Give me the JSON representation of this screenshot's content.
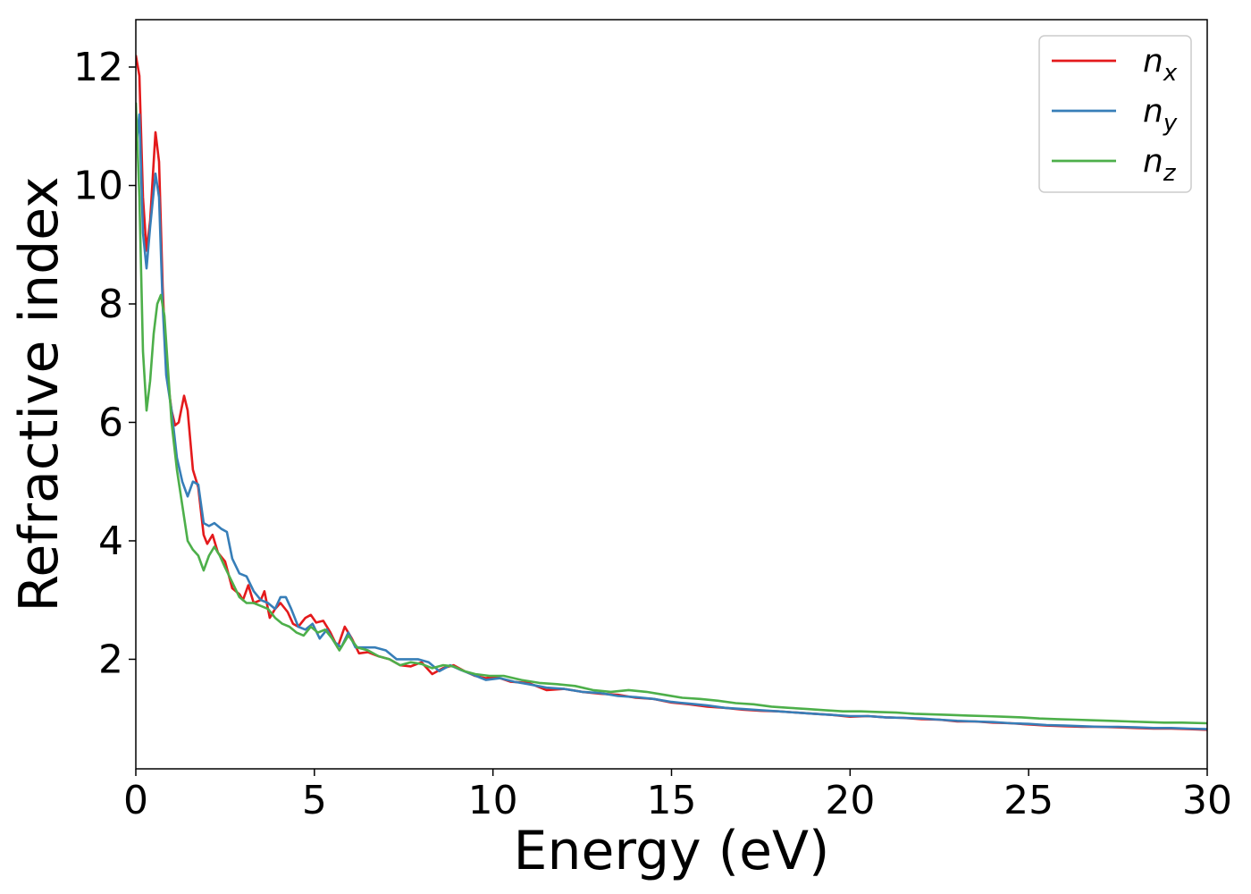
{
  "chart_data": {
    "type": "line",
    "title": "",
    "xlabel": "Energy (eV)",
    "ylabel": "Refractive index",
    "xlim": [
      0,
      30
    ],
    "ylim": [
      0.15,
      12.8
    ],
    "xticks": [
      0,
      5,
      10,
      15,
      20,
      25,
      30
    ],
    "yticks": [
      2,
      4,
      6,
      8,
      10,
      12
    ],
    "grid": false,
    "legend": {
      "position": "top-right"
    },
    "series": [
      {
        "name": "n_x",
        "label_main": "n",
        "label_sub": "x",
        "color": "#e41a1c",
        "points": [
          [
            0,
            12.2
          ],
          [
            0.1,
            11.85
          ],
          [
            0.2,
            9.8
          ],
          [
            0.3,
            8.9
          ],
          [
            0.4,
            9.4
          ],
          [
            0.55,
            10.9
          ],
          [
            0.65,
            10.4
          ],
          [
            0.75,
            8.3
          ],
          [
            0.85,
            6.9
          ],
          [
            1.0,
            6.2
          ],
          [
            1.1,
            5.95
          ],
          [
            1.2,
            6.0
          ],
          [
            1.35,
            6.45
          ],
          [
            1.45,
            6.2
          ],
          [
            1.6,
            5.2
          ],
          [
            1.75,
            4.9
          ],
          [
            1.9,
            4.1
          ],
          [
            2.0,
            3.95
          ],
          [
            2.15,
            4.1
          ],
          [
            2.3,
            3.8
          ],
          [
            2.5,
            3.65
          ],
          [
            2.7,
            3.2
          ],
          [
            2.9,
            3.1
          ],
          [
            3.0,
            3.0
          ],
          [
            3.15,
            3.25
          ],
          [
            3.3,
            2.95
          ],
          [
            3.5,
            3.0
          ],
          [
            3.6,
            3.15
          ],
          [
            3.75,
            2.7
          ],
          [
            3.9,
            2.85
          ],
          [
            4.05,
            2.95
          ],
          [
            4.25,
            2.8
          ],
          [
            4.4,
            2.6
          ],
          [
            4.55,
            2.55
          ],
          [
            4.75,
            2.7
          ],
          [
            4.9,
            2.75
          ],
          [
            5.05,
            2.62
          ],
          [
            5.25,
            2.65
          ],
          [
            5.45,
            2.45
          ],
          [
            5.65,
            2.2
          ],
          [
            5.85,
            2.55
          ],
          [
            6.05,
            2.35
          ],
          [
            6.25,
            2.1
          ],
          [
            6.5,
            2.12
          ],
          [
            6.8,
            2.05
          ],
          [
            7.1,
            2.0
          ],
          [
            7.4,
            1.9
          ],
          [
            7.7,
            1.88
          ],
          [
            8.0,
            1.95
          ],
          [
            8.3,
            1.75
          ],
          [
            8.6,
            1.85
          ],
          [
            8.9,
            1.9
          ],
          [
            9.2,
            1.8
          ],
          [
            9.5,
            1.72
          ],
          [
            9.8,
            1.68
          ],
          [
            10.1,
            1.7
          ],
          [
            10.5,
            1.62
          ],
          [
            11.0,
            1.6
          ],
          [
            11.5,
            1.48
          ],
          [
            12.0,
            1.5
          ],
          [
            12.5,
            1.45
          ],
          [
            13.0,
            1.42
          ],
          [
            13.5,
            1.4
          ],
          [
            14.0,
            1.35
          ],
          [
            14.5,
            1.33
          ],
          [
            15.0,
            1.27
          ],
          [
            15.5,
            1.24
          ],
          [
            16.0,
            1.2
          ],
          [
            16.5,
            1.18
          ],
          [
            17.0,
            1.15
          ],
          [
            17.5,
            1.13
          ],
          [
            18.0,
            1.12
          ],
          [
            18.5,
            1.1
          ],
          [
            19.0,
            1.08
          ],
          [
            19.5,
            1.06
          ],
          [
            20.0,
            1.03
          ],
          [
            20.5,
            1.04
          ],
          [
            21.0,
            1.02
          ],
          [
            21.5,
            1.01
          ],
          [
            22.0,
            0.99
          ],
          [
            22.5,
            0.98
          ],
          [
            23.0,
            0.95
          ],
          [
            23.5,
            0.95
          ],
          [
            24.0,
            0.93
          ],
          [
            24.5,
            0.92
          ],
          [
            25.0,
            0.9
          ],
          [
            25.5,
            0.88
          ],
          [
            26.0,
            0.87
          ],
          [
            26.5,
            0.86
          ],
          [
            27.0,
            0.86
          ],
          [
            27.5,
            0.85
          ],
          [
            28.0,
            0.84
          ],
          [
            28.5,
            0.83
          ],
          [
            29.0,
            0.83
          ],
          [
            29.5,
            0.82
          ],
          [
            30.0,
            0.81
          ]
        ]
      },
      {
        "name": "n_y",
        "label_main": "n",
        "label_sub": "y",
        "color": "#377eb8",
        "points": [
          [
            0,
            10.6
          ],
          [
            0.1,
            11.2
          ],
          [
            0.2,
            9.2
          ],
          [
            0.3,
            8.6
          ],
          [
            0.4,
            9.3
          ],
          [
            0.55,
            10.2
          ],
          [
            0.65,
            9.8
          ],
          [
            0.75,
            8.0
          ],
          [
            0.85,
            6.8
          ],
          [
            1.0,
            6.2
          ],
          [
            1.15,
            5.4
          ],
          [
            1.3,
            5.0
          ],
          [
            1.45,
            4.75
          ],
          [
            1.6,
            5.0
          ],
          [
            1.75,
            4.95
          ],
          [
            1.9,
            4.3
          ],
          [
            2.05,
            4.25
          ],
          [
            2.2,
            4.3
          ],
          [
            2.4,
            4.2
          ],
          [
            2.55,
            4.15
          ],
          [
            2.7,
            3.7
          ],
          [
            2.9,
            3.45
          ],
          [
            3.1,
            3.4
          ],
          [
            3.3,
            3.15
          ],
          [
            3.5,
            3.0
          ],
          [
            3.7,
            2.95
          ],
          [
            3.9,
            2.85
          ],
          [
            4.05,
            3.05
          ],
          [
            4.2,
            3.05
          ],
          [
            4.35,
            2.85
          ],
          [
            4.55,
            2.55
          ],
          [
            4.75,
            2.5
          ],
          [
            4.95,
            2.6
          ],
          [
            5.15,
            2.35
          ],
          [
            5.35,
            2.5
          ],
          [
            5.55,
            2.3
          ],
          [
            5.75,
            2.2
          ],
          [
            5.95,
            2.45
          ],
          [
            6.15,
            2.2
          ],
          [
            6.4,
            2.2
          ],
          [
            6.7,
            2.2
          ],
          [
            7.0,
            2.15
          ],
          [
            7.3,
            2.0
          ],
          [
            7.6,
            2.0
          ],
          [
            7.9,
            2.0
          ],
          [
            8.2,
            1.95
          ],
          [
            8.5,
            1.8
          ],
          [
            8.8,
            1.9
          ],
          [
            9.1,
            1.82
          ],
          [
            9.4,
            1.75
          ],
          [
            9.8,
            1.65
          ],
          [
            10.2,
            1.68
          ],
          [
            10.6,
            1.62
          ],
          [
            11.0,
            1.58
          ],
          [
            11.5,
            1.52
          ],
          [
            12.0,
            1.5
          ],
          [
            12.5,
            1.45
          ],
          [
            13.0,
            1.43
          ],
          [
            13.5,
            1.38
          ],
          [
            14.0,
            1.36
          ],
          [
            14.5,
            1.33
          ],
          [
            15.0,
            1.28
          ],
          [
            15.5,
            1.25
          ],
          [
            16.0,
            1.22
          ],
          [
            16.5,
            1.18
          ],
          [
            17.0,
            1.16
          ],
          [
            17.5,
            1.14
          ],
          [
            18.0,
            1.12
          ],
          [
            18.5,
            1.1
          ],
          [
            19.0,
            1.08
          ],
          [
            19.5,
            1.06
          ],
          [
            20.0,
            1.04
          ],
          [
            20.5,
            1.04
          ],
          [
            21.0,
            1.02
          ],
          [
            21.5,
            1.01
          ],
          [
            22.0,
            1.0
          ],
          [
            22.5,
            0.98
          ],
          [
            23.0,
            0.96
          ],
          [
            23.5,
            0.95
          ],
          [
            24.0,
            0.94
          ],
          [
            24.5,
            0.92
          ],
          [
            25.0,
            0.91
          ],
          [
            25.5,
            0.89
          ],
          [
            26.0,
            0.88
          ],
          [
            26.5,
            0.87
          ],
          [
            27.0,
            0.86
          ],
          [
            27.5,
            0.86
          ],
          [
            28.0,
            0.85
          ],
          [
            28.5,
            0.84
          ],
          [
            29.0,
            0.84
          ],
          [
            29.5,
            0.83
          ],
          [
            30.0,
            0.82
          ]
        ]
      },
      {
        "name": "n_z",
        "label_main": "n",
        "label_sub": "z",
        "color": "#4daf4a",
        "points": [
          [
            0,
            11.4
          ],
          [
            0.1,
            9.8
          ],
          [
            0.2,
            7.2
          ],
          [
            0.3,
            6.2
          ],
          [
            0.4,
            6.7
          ],
          [
            0.5,
            7.5
          ],
          [
            0.6,
            8.0
          ],
          [
            0.7,
            8.15
          ],
          [
            0.8,
            7.8
          ],
          [
            0.9,
            6.9
          ],
          [
            1.0,
            6.0
          ],
          [
            1.15,
            5.2
          ],
          [
            1.3,
            4.6
          ],
          [
            1.45,
            4.0
          ],
          [
            1.6,
            3.85
          ],
          [
            1.75,
            3.75
          ],
          [
            1.9,
            3.5
          ],
          [
            2.05,
            3.75
          ],
          [
            2.2,
            3.9
          ],
          [
            2.35,
            3.75
          ],
          [
            2.5,
            3.55
          ],
          [
            2.7,
            3.3
          ],
          [
            2.9,
            3.05
          ],
          [
            3.1,
            2.95
          ],
          [
            3.3,
            2.95
          ],
          [
            3.5,
            2.9
          ],
          [
            3.7,
            2.85
          ],
          [
            3.9,
            2.7
          ],
          [
            4.1,
            2.6
          ],
          [
            4.3,
            2.55
          ],
          [
            4.5,
            2.45
          ],
          [
            4.7,
            2.4
          ],
          [
            4.9,
            2.55
          ],
          [
            5.1,
            2.45
          ],
          [
            5.3,
            2.5
          ],
          [
            5.5,
            2.35
          ],
          [
            5.7,
            2.15
          ],
          [
            5.95,
            2.4
          ],
          [
            6.2,
            2.2
          ],
          [
            6.5,
            2.15
          ],
          [
            6.8,
            2.05
          ],
          [
            7.1,
            2.0
          ],
          [
            7.4,
            1.9
          ],
          [
            7.7,
            1.95
          ],
          [
            8.0,
            1.92
          ],
          [
            8.3,
            1.85
          ],
          [
            8.6,
            1.9
          ],
          [
            8.9,
            1.88
          ],
          [
            9.2,
            1.8
          ],
          [
            9.5,
            1.75
          ],
          [
            9.9,
            1.72
          ],
          [
            10.3,
            1.72
          ],
          [
            10.8,
            1.65
          ],
          [
            11.3,
            1.6
          ],
          [
            11.8,
            1.58
          ],
          [
            12.3,
            1.55
          ],
          [
            12.8,
            1.48
          ],
          [
            13.3,
            1.45
          ],
          [
            13.8,
            1.48
          ],
          [
            14.3,
            1.45
          ],
          [
            14.8,
            1.4
          ],
          [
            15.3,
            1.35
          ],
          [
            15.8,
            1.33
          ],
          [
            16.3,
            1.3
          ],
          [
            16.8,
            1.26
          ],
          [
            17.3,
            1.24
          ],
          [
            17.8,
            1.2
          ],
          [
            18.3,
            1.18
          ],
          [
            18.8,
            1.16
          ],
          [
            19.3,
            1.14
          ],
          [
            19.8,
            1.12
          ],
          [
            20.3,
            1.12
          ],
          [
            20.8,
            1.11
          ],
          [
            21.3,
            1.1
          ],
          [
            21.8,
            1.08
          ],
          [
            22.3,
            1.07
          ],
          [
            22.8,
            1.06
          ],
          [
            23.3,
            1.05
          ],
          [
            23.8,
            1.04
          ],
          [
            24.3,
            1.03
          ],
          [
            24.8,
            1.02
          ],
          [
            25.3,
            1.0
          ],
          [
            25.8,
            0.99
          ],
          [
            26.3,
            0.98
          ],
          [
            26.8,
            0.97
          ],
          [
            27.3,
            0.96
          ],
          [
            27.8,
            0.95
          ],
          [
            28.3,
            0.94
          ],
          [
            28.8,
            0.93
          ],
          [
            29.3,
            0.93
          ],
          [
            30.0,
            0.92
          ]
        ]
      }
    ]
  }
}
